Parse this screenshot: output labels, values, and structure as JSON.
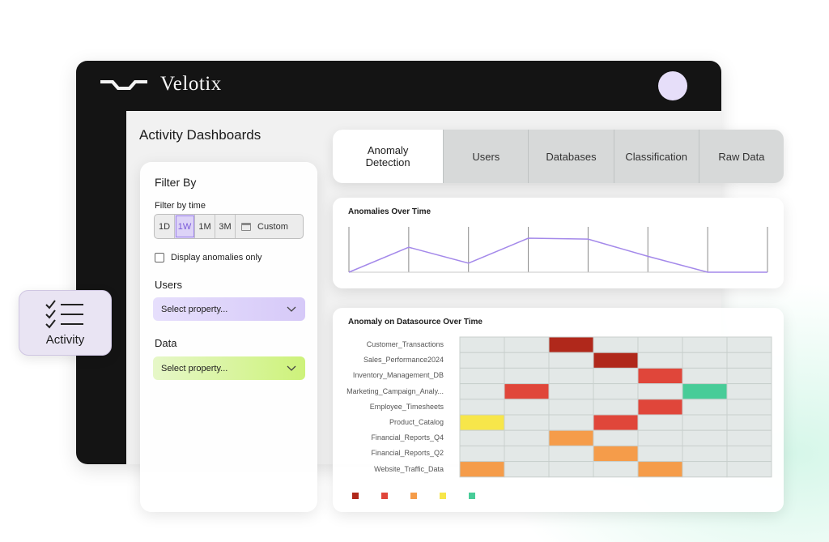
{
  "app": {
    "brand": "Velotix"
  },
  "page": {
    "title": "Activity Dashboards"
  },
  "filter": {
    "title": "Filter By",
    "time_label": "Filter by time",
    "ranges": [
      "1D",
      "1W",
      "1M",
      "3M"
    ],
    "selected_range": "1W",
    "custom_label": "Custom",
    "anomalies_only_label": "Display anomalies only",
    "anomalies_only_checked": false,
    "users_label": "Users",
    "users_placeholder": "Select property...",
    "data_label": "Data",
    "data_placeholder": "Select property..."
  },
  "tabs": {
    "items": [
      {
        "label": "Anomaly Detection",
        "active": true
      },
      {
        "label": "Users",
        "active": false
      },
      {
        "label": "Databases",
        "active": false
      },
      {
        "label": "Classification",
        "active": false
      },
      {
        "label": "Raw Data",
        "active": false
      }
    ]
  },
  "activity_widget": {
    "label": "Activity",
    "icon": "checklist-icon"
  },
  "colors": {
    "accent_purple": "#a489ea",
    "heat_darkred": "#b0281b",
    "heat_red": "#e0463a",
    "heat_orange": "#f59c4a",
    "heat_yellow": "#f7e64a",
    "heat_green": "#48cc98",
    "cell_empty": "#e3e8e7"
  },
  "chart_data": [
    {
      "type": "line",
      "title": "Anomalies Over Time",
      "x": [
        0,
        1,
        2,
        3,
        4,
        5,
        6,
        7
      ],
      "series": [
        {
          "values": [
            0.0,
            0.55,
            0.2,
            0.75,
            0.73,
            0.35,
            0.0,
            0.0
          ]
        }
      ],
      "ylim": [
        0,
        1
      ],
      "grid": true
    },
    {
      "type": "heatmap",
      "title": "Anomaly on Datasource Over Time",
      "rows": [
        "Customer_Transactions",
        "Sales_Performance2024",
        "Inventory_Management_DB",
        "Marketing_Campaign_Analy...",
        "Employee_Timesheets",
        "Product_Catalog",
        "Financial_Reports_Q4",
        "Financial_Reports_Q2",
        "Website_Traffic_Data"
      ],
      "columns": 7,
      "cells": [
        {
          "row": 0,
          "col": 2,
          "level": "darkred"
        },
        {
          "row": 1,
          "col": 3,
          "level": "darkred"
        },
        {
          "row": 2,
          "col": 4,
          "level": "red"
        },
        {
          "row": 3,
          "col": 1,
          "level": "red"
        },
        {
          "row": 3,
          "col": 5,
          "level": "green"
        },
        {
          "row": 4,
          "col": 4,
          "level": "red"
        },
        {
          "row": 5,
          "col": 0,
          "level": "yellow"
        },
        {
          "row": 5,
          "col": 3,
          "level": "red"
        },
        {
          "row": 6,
          "col": 2,
          "level": "orange"
        },
        {
          "row": 7,
          "col": 3,
          "level": "orange"
        },
        {
          "row": 8,
          "col": 0,
          "level": "orange"
        },
        {
          "row": 8,
          "col": 4,
          "level": "orange"
        }
      ],
      "legend": [
        "darkred",
        "red",
        "orange",
        "yellow",
        "green"
      ]
    }
  ]
}
